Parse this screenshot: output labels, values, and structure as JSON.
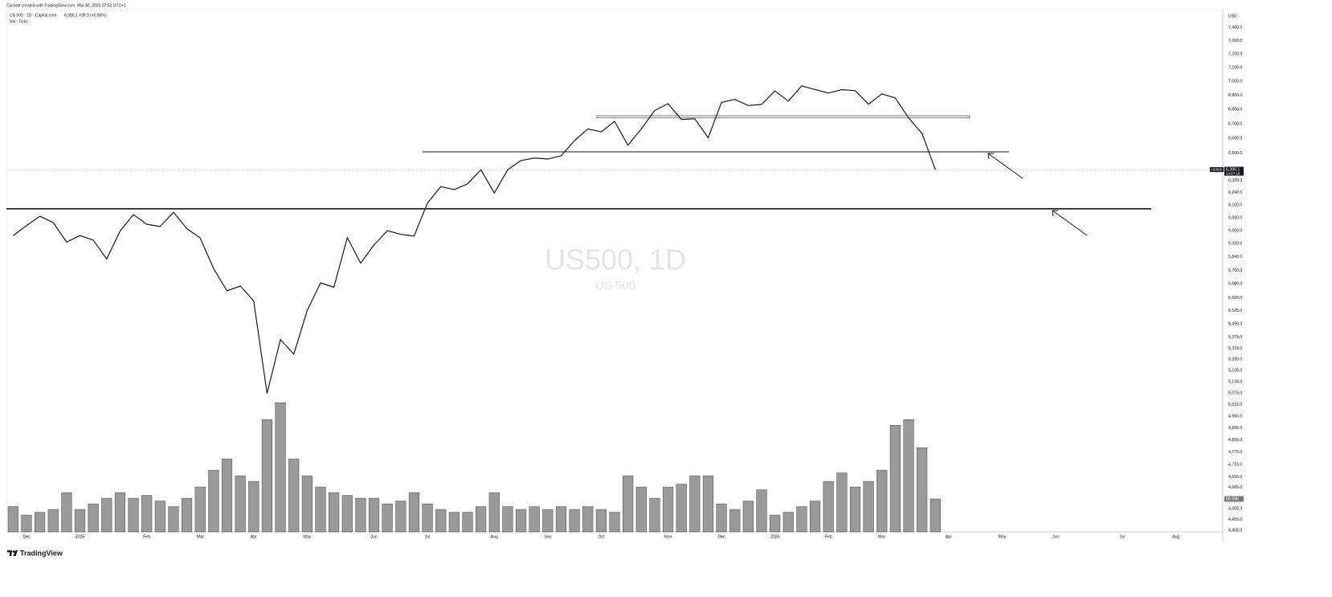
{
  "chart_data": {
    "type": "line",
    "header": "Caraxbt created with TradingView.com, Mar 30, 2026 07:52 UTC+1",
    "legend_symbol": "US 500 · 1D · Capital.com",
    "legend_quote": "6,390.1 +35.9 (+0.56%)",
    "watermark": "US500, 1D",
    "watermark_sub": "US 500",
    "currency": "USD",
    "countdown": "14:07:18",
    "brand": "TradingView",
    "log_scale": true,
    "grid": false,
    "ylim": [
      4398,
      7536
    ],
    "volume_lim": [
      0,
      930
    ],
    "yticks": [
      {
        "value": 7400,
        "label": "7,400.0"
      },
      {
        "value": 7300,
        "label": "7,300.0"
      },
      {
        "value": 7200,
        "label": "7,200.0"
      },
      {
        "value": 7100,
        "label": "7,100.0"
      },
      {
        "value": 7000,
        "label": "7,000.0"
      },
      {
        "value": 6900,
        "label": "6,900.0"
      },
      {
        "value": 6800,
        "label": "6,800.0"
      },
      {
        "value": 6700,
        "label": "6,700.0"
      },
      {
        "value": 6600,
        "label": "6,600.0"
      },
      {
        "value": 6500,
        "label": "6,500.0"
      },
      {
        "value": 6320,
        "label": "6,320.0"
      },
      {
        "value": 6240,
        "label": "6,240.0"
      },
      {
        "value": 6160,
        "label": "6,160.0"
      },
      {
        "value": 6080,
        "label": "6,080.0"
      },
      {
        "value": 6000,
        "label": "6,000.0"
      },
      {
        "value": 5920,
        "label": "5,920.0"
      },
      {
        "value": 5840,
        "label": "5,840.0"
      },
      {
        "value": 5760,
        "label": "5,760.0"
      },
      {
        "value": 5680,
        "label": "5,680.0"
      },
      {
        "value": 5600,
        "label": "5,600.0"
      },
      {
        "value": 5525,
        "label": "5,525.0"
      },
      {
        "value": 5450,
        "label": "5,450.0"
      },
      {
        "value": 5375,
        "label": "5,375.0"
      },
      {
        "value": 5315,
        "label": "5,315.0"
      },
      {
        "value": 5255,
        "label": "5,255.0"
      },
      {
        "value": 5195,
        "label": "5,195.0"
      },
      {
        "value": 5135,
        "label": "5,135.0"
      },
      {
        "value": 5075,
        "label": "5,075.0"
      },
      {
        "value": 5015,
        "label": "5,015.0"
      },
      {
        "value": 4955,
        "label": "4,955.0"
      },
      {
        "value": 4895,
        "label": "4,895.0"
      },
      {
        "value": 4835,
        "label": "4,835.0"
      },
      {
        "value": 4775,
        "label": "4,775.0"
      },
      {
        "value": 4715,
        "label": "4,715.0"
      },
      {
        "value": 4655,
        "label": "4,655.0"
      },
      {
        "value": 4605,
        "label": "4,605.0"
      },
      {
        "value": 4505,
        "label": "4,505.0"
      },
      {
        "value": 4455,
        "label": "4,455.0"
      },
      {
        "value": 4405,
        "label": "4,405.0"
      }
    ],
    "categories": [
      null,
      "Dec",
      null,
      null,
      null,
      "2025",
      null,
      null,
      null,
      null,
      "Feb",
      null,
      null,
      null,
      "Mar",
      null,
      null,
      null,
      "Apr",
      null,
      null,
      null,
      "May",
      null,
      null,
      null,
      null,
      "Jun",
      null,
      null,
      null,
      "Jul",
      null,
      null,
      null,
      null,
      "Aug",
      null,
      null,
      null,
      "Sep",
      null,
      null,
      null,
      "Oct",
      null,
      null,
      null,
      null,
      "Nov",
      null,
      null,
      null,
      "Dec",
      null,
      null,
      null,
      "2026",
      null,
      null,
      null,
      "Feb",
      null,
      null,
      null,
      "Mar",
      null,
      null,
      null,
      null,
      "Apr",
      null,
      null,
      null,
      "May",
      null,
      null,
      null,
      "Jun",
      null,
      null,
      null,
      null,
      "Jul",
      null,
      null,
      null,
      "Aug",
      null,
      null,
      null
    ],
    "series": [
      {
        "name": "US500",
        "type": "line",
        "color": "#131722",
        "values": [
          5969,
          6032,
          6090,
          6051,
          5930,
          5970,
          5942,
          5827,
          5997,
          6101,
          6040,
          6026,
          6115,
          6013,
          5955,
          5770,
          5639,
          5667,
          5581,
          5074,
          5363,
          5282,
          5525,
          5686,
          5660,
          5958,
          5802,
          5912,
          6000,
          5977,
          5967,
          6173,
          6279,
          6260,
          6297,
          6389,
          6238,
          6389,
          6450,
          6467,
          6460,
          6482,
          6584,
          6664,
          6644,
          6716,
          6553,
          6664,
          6791,
          6840,
          6729,
          6734,
          6603,
          6849,
          6870,
          6827,
          6834,
          6930,
          6858,
          6966,
          6940,
          6915,
          6939,
          6932,
          6836,
          6909,
          6880,
          6740,
          6632,
          6390.1,
          null,
          null,
          null,
          null,
          null,
          null,
          null,
          null,
          null,
          null,
          null,
          null,
          null,
          null,
          null,
          null,
          null,
          null,
          null,
          null,
          null
        ],
        "value_labels": [
          null,
          null,
          null,
          null,
          null,
          null,
          null,
          null,
          null,
          null,
          null,
          null,
          null,
          null,
          null,
          null,
          null,
          null,
          null,
          null,
          null,
          null,
          null,
          null,
          null,
          null,
          null,
          null,
          null,
          null,
          null,
          null,
          null,
          null,
          null,
          null,
          null,
          null,
          null,
          null,
          null,
          null,
          null,
          null,
          null,
          null,
          null,
          null,
          null,
          null,
          null,
          null,
          null,
          null,
          null,
          null,
          null,
          null,
          null,
          null,
          null,
          null,
          null,
          null,
          null,
          null,
          null,
          null,
          null,
          "6,390.1",
          null,
          null,
          null,
          null,
          null,
          null,
          null,
          null,
          null,
          null,
          null,
          null,
          null,
          null,
          null,
          null,
          null,
          null,
          null,
          null,
          null
        ]
      },
      {
        "name": "Vol · Ticks",
        "type": "bar",
        "axis": "volume",
        "color": "#9a9a9a",
        "values": [
          45,
          30,
          35,
          40,
          70,
          40,
          50,
          60,
          70,
          60,
          65,
          55,
          45,
          60,
          80,
          110,
          130,
          100,
          90,
          200,
          230,
          130,
          100,
          80,
          70,
          65,
          60,
          60,
          50,
          55,
          70,
          50,
          40,
          35,
          35,
          45,
          70,
          45,
          40,
          45,
          40,
          45,
          40,
          45,
          40,
          35,
          100,
          80,
          60,
          80,
          85,
          100,
          100,
          50,
          40,
          55,
          75,
          30,
          35,
          45,
          55,
          90,
          105,
          80,
          90,
          110,
          190,
          200,
          150,
          58.68,
          null,
          null,
          null,
          null,
          null,
          null,
          null,
          null,
          null,
          null,
          null,
          null,
          null,
          null,
          null,
          null,
          null,
          null,
          null,
          null,
          null
        ],
        "value_labels": [
          null,
          null,
          null,
          null,
          null,
          null,
          null,
          null,
          null,
          null,
          null,
          null,
          null,
          null,
          null,
          null,
          null,
          null,
          null,
          null,
          null,
          null,
          null,
          null,
          null,
          null,
          null,
          null,
          null,
          null,
          null,
          null,
          null,
          null,
          null,
          null,
          null,
          null,
          null,
          null,
          null,
          null,
          null,
          null,
          null,
          null,
          null,
          null,
          null,
          null,
          null,
          null,
          null,
          null,
          null,
          null,
          null,
          null,
          null,
          null,
          null,
          null,
          null,
          null,
          null,
          null,
          null,
          null,
          null,
          "58.68K",
          null,
          null,
          null,
          null,
          null,
          null,
          null,
          null,
          null,
          null,
          null,
          null,
          null,
          null,
          null,
          null,
          null,
          null,
          null,
          null,
          null
        ]
      }
    ],
    "horizontal_lines": [
      6137,
      6508
    ],
    "zone": [
      6740,
      6755
    ]
  }
}
